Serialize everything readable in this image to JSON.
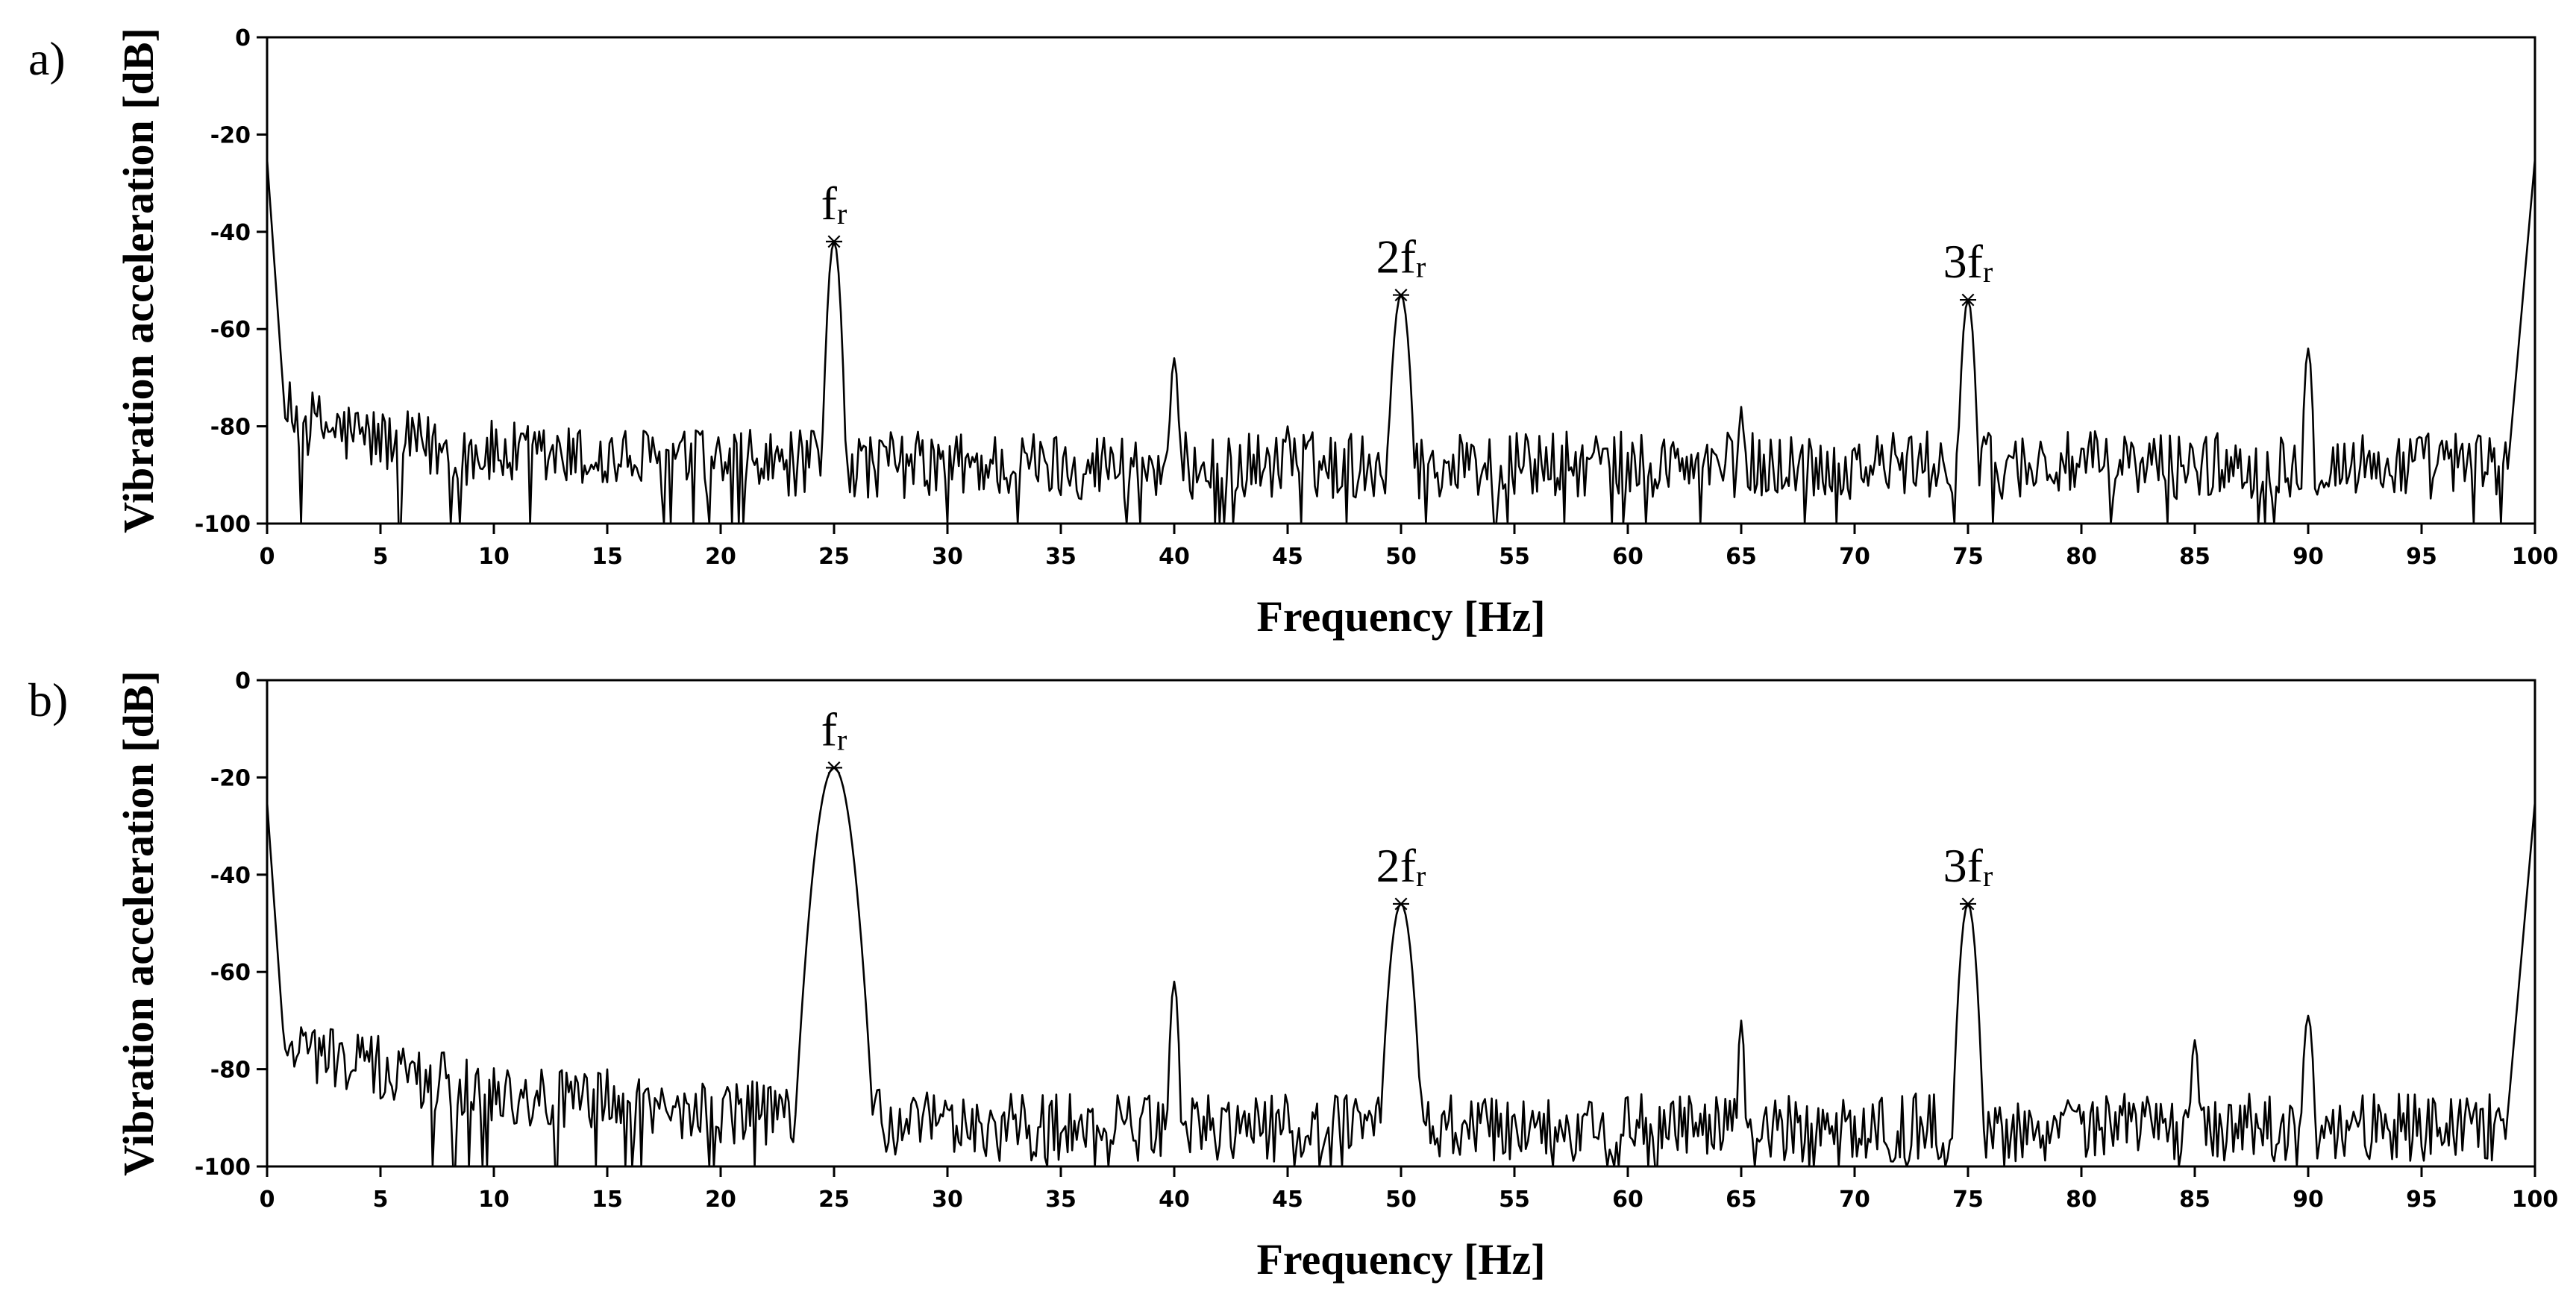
{
  "chart_data": [
    {
      "type": "line",
      "panel_label": "a)",
      "xlabel": "Frequency [Hz]",
      "ylabel": "Vibration acceleration [dB]",
      "xlim": [
        0,
        100
      ],
      "ylim": [
        -100,
        0
      ],
      "xticks": [
        "0",
        "5",
        "10",
        "15",
        "20",
        "25",
        "30",
        "35",
        "40",
        "45",
        "50",
        "55",
        "60",
        "65",
        "70",
        "75",
        "80",
        "85",
        "90",
        "95",
        "100"
      ],
      "yticks": [
        "0",
        "-20",
        "-40",
        "-60",
        "-80",
        "-100"
      ],
      "grid": false,
      "noise_floor_db": -88,
      "edge_db": -25,
      "peaks": [
        {
          "x": 25,
          "y": -42,
          "width": 0.35
        },
        {
          "x": 40,
          "y": -66,
          "width": 0.25
        },
        {
          "x": 45,
          "y": -80,
          "width": 0.25
        },
        {
          "x": 50,
          "y": -53,
          "width": 0.45
        },
        {
          "x": 65,
          "y": -76,
          "width": 0.2
        },
        {
          "x": 75,
          "y": -54,
          "width": 0.35
        },
        {
          "x": 90,
          "y": -64,
          "width": 0.25
        }
      ],
      "annotations": [
        {
          "x": 25,
          "y": -42,
          "prefix": "",
          "text": "f",
          "sub": "r"
        },
        {
          "x": 50,
          "y": -53,
          "prefix": "2",
          "text": "f",
          "sub": "r"
        },
        {
          "x": 75,
          "y": -54,
          "prefix": "3",
          "text": "f",
          "sub": "r"
        }
      ]
    },
    {
      "type": "line",
      "panel_label": "b)",
      "xlabel": "Frequency [Hz]",
      "ylabel": "Vibration acceleration [dB]",
      "xlim": [
        0,
        100
      ],
      "ylim": [
        -100,
        0
      ],
      "xticks": [
        "0",
        "5",
        "10",
        "15",
        "20",
        "25",
        "30",
        "35",
        "40",
        "45",
        "50",
        "55",
        "60",
        "65",
        "70",
        "75",
        "80",
        "85",
        "90",
        "95",
        "100"
      ],
      "yticks": [
        "0",
        "-20",
        "-40",
        "-60",
        "-80",
        "-100"
      ],
      "grid": false,
      "noise_floor_db": -88,
      "edge_db": -25,
      "peaks": [
        {
          "x": 25,
          "y": -18,
          "width": 0.9
        },
        {
          "x": 40,
          "y": -62,
          "width": 0.25
        },
        {
          "x": 50,
          "y": -46,
          "width": 0.6
        },
        {
          "x": 65,
          "y": -70,
          "width": 0.2
        },
        {
          "x": 75,
          "y": -46,
          "width": 0.45
        },
        {
          "x": 85,
          "y": -74,
          "width": 0.25
        },
        {
          "x": 90,
          "y": -69,
          "width": 0.3
        }
      ],
      "annotations": [
        {
          "x": 25,
          "y": -18,
          "prefix": "",
          "text": "f",
          "sub": "r"
        },
        {
          "x": 50,
          "y": -46,
          "prefix": "2",
          "text": "f",
          "sub": "r"
        },
        {
          "x": 75,
          "y": -46,
          "prefix": "3",
          "text": "f",
          "sub": "r"
        }
      ]
    }
  ]
}
